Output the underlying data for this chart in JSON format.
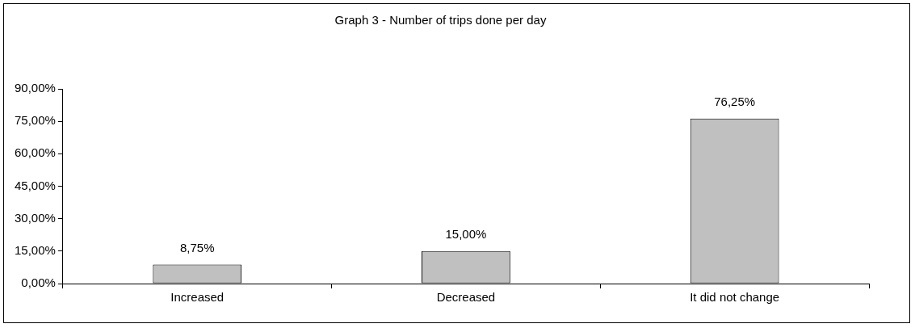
{
  "chart_data": {
    "type": "bar",
    "title": "Graph 3 - Number of trips done per day",
    "categories": [
      "Increased",
      "Decreased",
      "It did not change"
    ],
    "values": [
      8.75,
      15.0,
      76.25
    ],
    "value_labels": [
      "8,75%",
      "15,00%",
      "76,25%"
    ],
    "color": "#c0c0c0",
    "ylim": [
      0,
      90
    ],
    "yticks": [
      {
        "value": 0,
        "label": "0,00%"
      },
      {
        "value": 15,
        "label": "15,00%"
      },
      {
        "value": 30,
        "label": "30,00%"
      },
      {
        "value": 45,
        "label": "45,00%"
      },
      {
        "value": 60,
        "label": "60,00%"
      },
      {
        "value": 75,
        "label": "75,00%"
      },
      {
        "value": 90,
        "label": "90,00%"
      }
    ],
    "grid": false,
    "legend": false
  }
}
